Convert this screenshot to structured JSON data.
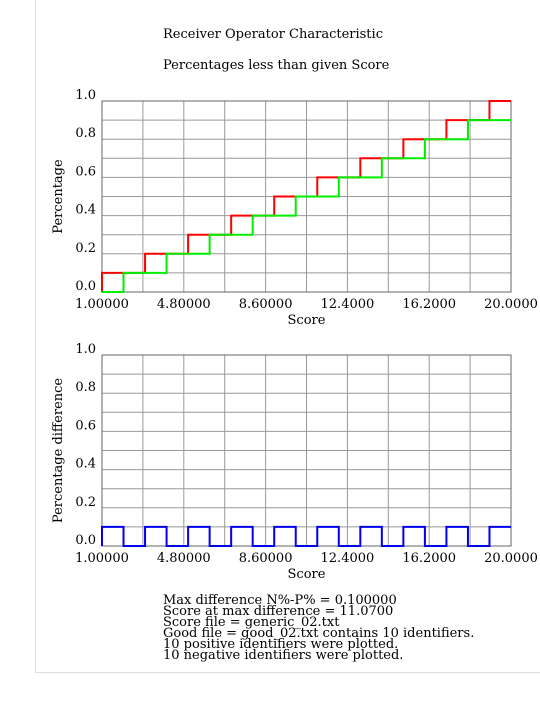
{
  "header": {
    "title": "Receiver Operator Characteristic"
  },
  "chart_data": [
    {
      "type": "line",
      "title": "Percentages less than given Score",
      "xlabel": "Score",
      "ylabel": "Percentage",
      "xlim": [
        1.0,
        20.0
      ],
      "ylim": [
        0.0,
        1.0
      ],
      "x_tick_labels": [
        "1.00000",
        "4.80000",
        "8.60000",
        "12.4000",
        "16.2000",
        "20.0000"
      ],
      "y_tick_labels": [
        "0.0",
        "0.2",
        "0.4",
        "0.6",
        "0.8",
        "1.0"
      ],
      "grid": true,
      "series": [
        {
          "color": "#ff0000",
          "step": true,
          "x": [
            1.0,
            1.0,
            3.0,
            5.0,
            7.0,
            9.0,
            11.0,
            13.0,
            15.0,
            17.0,
            19.0,
            20.0
          ],
          "values": [
            0.0,
            0.1,
            0.2,
            0.3,
            0.4,
            0.5,
            0.6,
            0.7,
            0.8,
            0.9,
            1.0,
            1.0
          ]
        },
        {
          "color": "#00ee00",
          "step": true,
          "x": [
            1.0,
            2.0,
            4.0,
            6.0,
            8.0,
            10.0,
            12.0,
            14.0,
            16.0,
            18.0,
            20.0
          ],
          "values": [
            0.0,
            0.1,
            0.2,
            0.3,
            0.4,
            0.5,
            0.6,
            0.7,
            0.8,
            0.9,
            0.9
          ]
        }
      ]
    },
    {
      "type": "line",
      "title": "",
      "xlabel": "Score",
      "ylabel": "Percentage difference",
      "xlim": [
        1.0,
        20.0
      ],
      "ylim": [
        0.0,
        1.0
      ],
      "x_tick_labels": [
        "1.00000",
        "4.80000",
        "8.60000",
        "12.4000",
        "16.2000",
        "20.0000"
      ],
      "y_tick_labels": [
        "0.0",
        "0.2",
        "0.4",
        "0.6",
        "0.8",
        "1.0"
      ],
      "grid": true,
      "series": [
        {
          "color": "#0000ee",
          "step": true,
          "x": [
            1.0,
            1.0,
            2.0,
            3.0,
            4.0,
            5.0,
            6.0,
            7.0,
            8.0,
            9.0,
            10.0,
            11.0,
            12.0,
            13.0,
            14.0,
            15.0,
            16.0,
            17.0,
            18.0,
            19.0,
            20.0
          ],
          "values": [
            0.0,
            0.1,
            0.0,
            0.1,
            0.0,
            0.1,
            0.0,
            0.1,
            0.0,
            0.1,
            0.0,
            0.1,
            0.0,
            0.1,
            0.0,
            0.1,
            0.0,
            0.1,
            0.0,
            0.1,
            0.1
          ]
        }
      ]
    }
  ],
  "info_lines": [
    "Max difference N%-P% = 0.100000",
    "Score at max difference = 11.0700",
    "Score file = generic_02.txt",
    "Good file = good_02.txt contains 10 identifiers.",
    "10 positive identifiers were plotted.",
    "10 negative identifiers were plotted."
  ]
}
